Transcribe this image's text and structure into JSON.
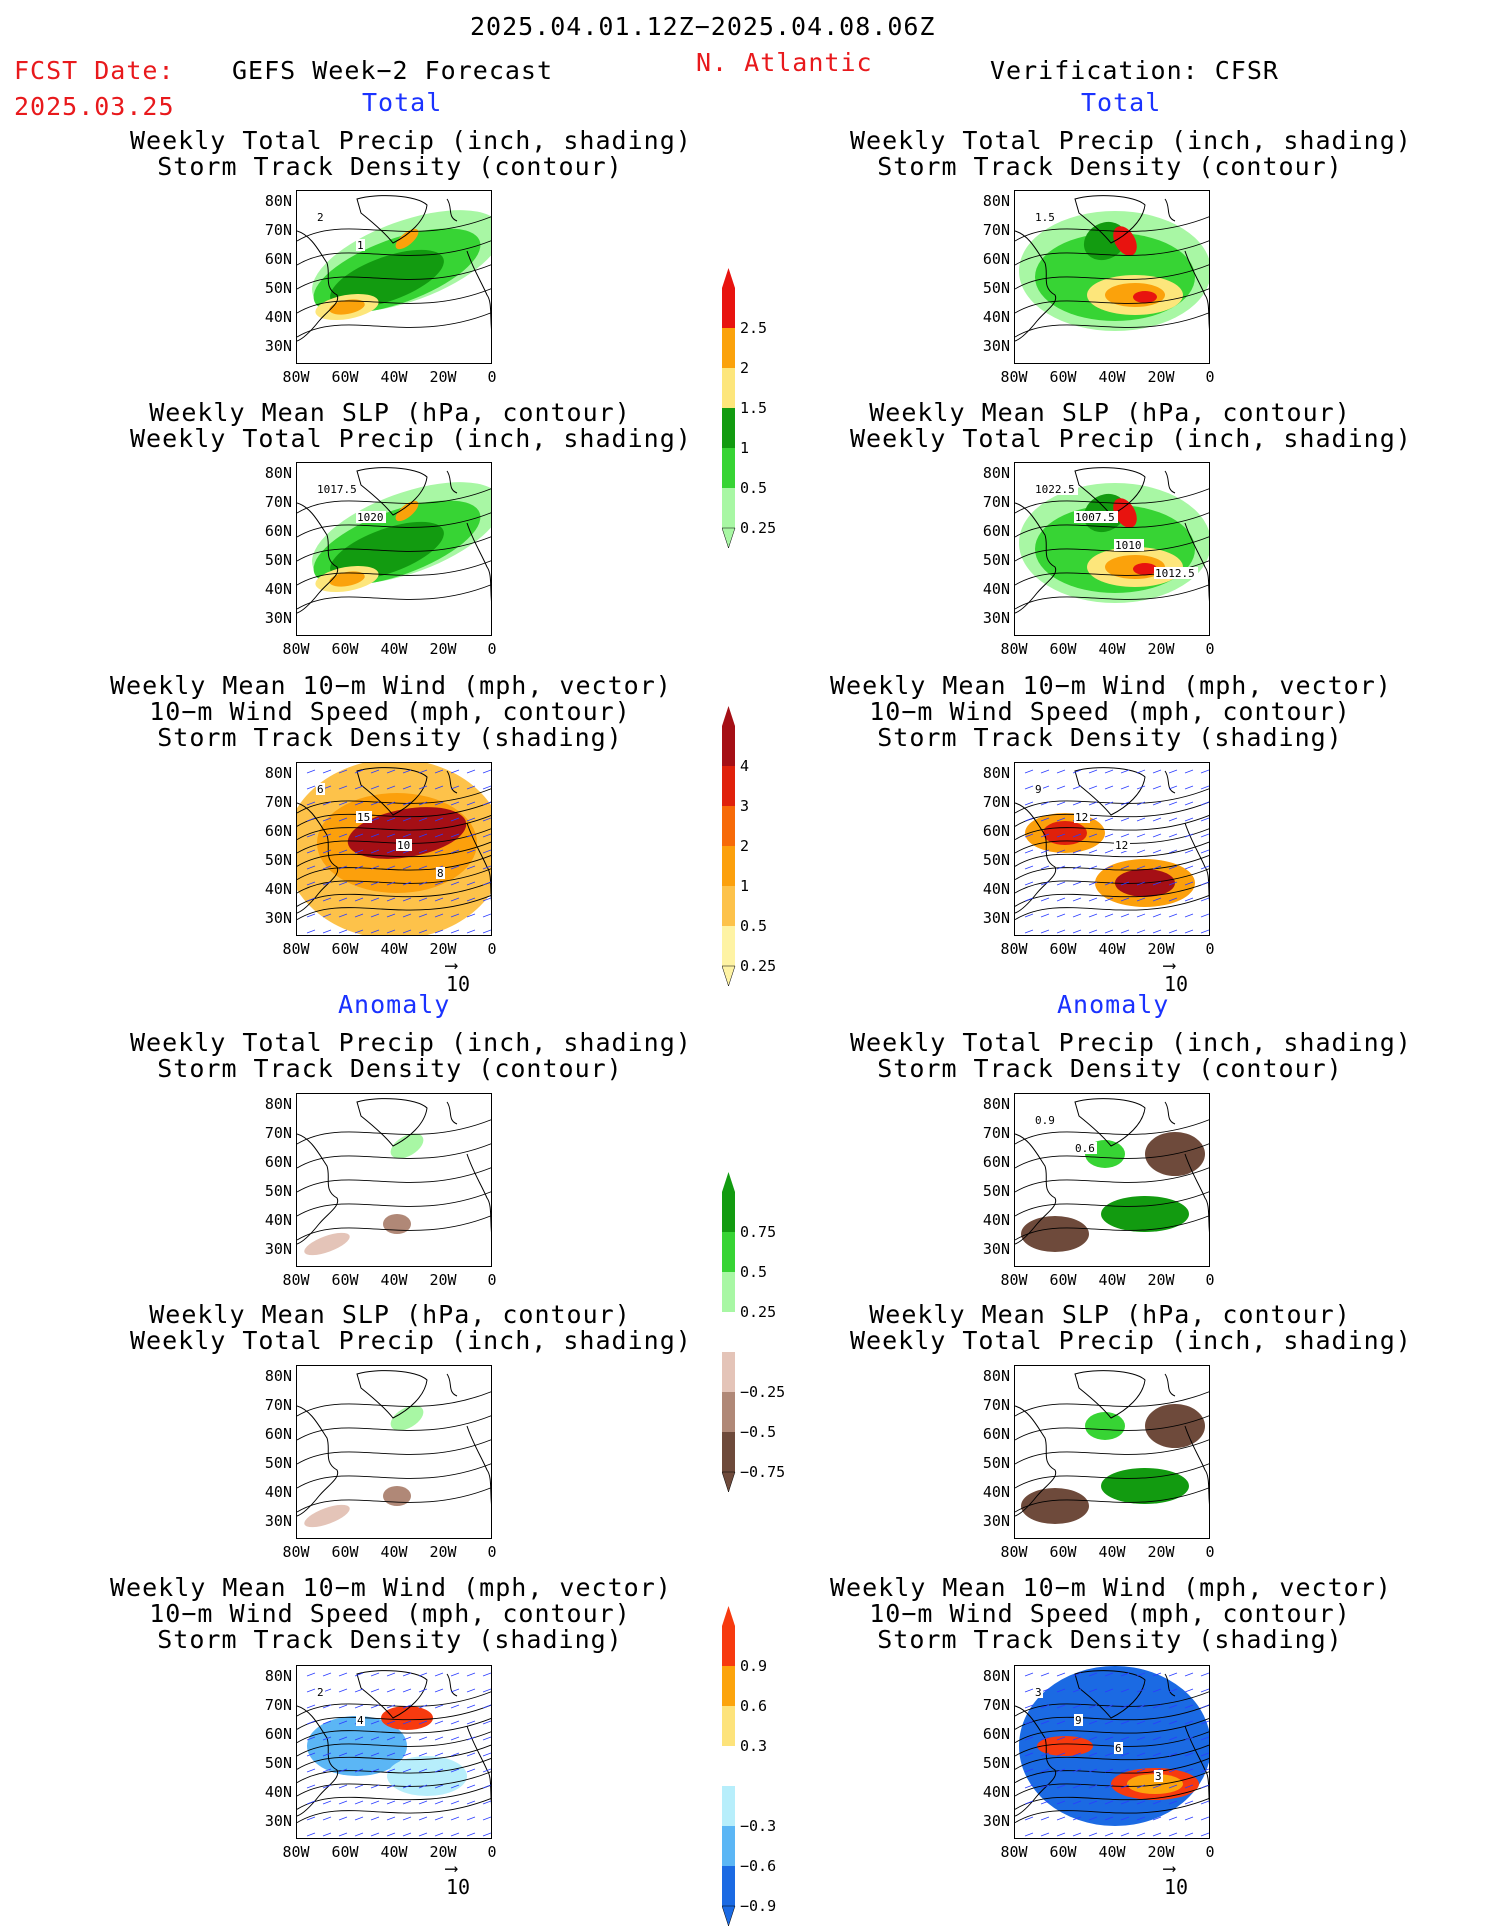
{
  "header": {
    "date_range": "2025.04.01.12Z−2025.04.08.06Z",
    "fcst_label": "FCST Date:",
    "fcst_date": "2025.03.25",
    "model_title": "GEFS Week−2 Forecast",
    "region": "N. Atlantic",
    "verification": "Verification: CFSR"
  },
  "sections": {
    "total": "Total",
    "anomaly": "Anomaly"
  },
  "titles": {
    "precip_track": "Weekly Total Precip (inch, shading)\nStorm Track Density (contour)",
    "slp_precip": "Weekly Mean SLP (hPa, contour)\nWeekly Total Precip (inch, shading)",
    "wind_track": "Weekly Mean 10−m Wind (mph, vector)\n10−m Wind Speed (mph, contour)\nStorm Track Density (shading)"
  },
  "axes": {
    "lat_labels": [
      "80N",
      "70N",
      "60N",
      "50N",
      "40N",
      "30N"
    ],
    "lon_labels": [
      "80W",
      "60W",
      "40W",
      "20W",
      "0"
    ]
  },
  "vector_ref": "10",
  "contour_labels": {
    "fc_precip_track": [
      "2",
      "1"
    ],
    "fc_slp_precip": [
      "1017.5",
      "1020"
    ],
    "fc_wind": [
      "6",
      "15",
      "10",
      "8"
    ],
    "ob_precip_track": [
      "1.5"
    ],
    "ob_slp_precip": [
      "1022.5",
      "1007.5",
      "1010",
      "1012.5"
    ],
    "ob_wind": [
      "9",
      "12",
      "12"
    ],
    "fc_anom_wind": [
      "2",
      "4"
    ],
    "ob_anom_precip": [
      "0.9",
      "0.6"
    ],
    "ob_anom_wind": [
      "3",
      "9",
      "6",
      "3"
    ]
  },
  "colorbars": {
    "precip_total": {
      "labels": [
        "2.5",
        "2",
        "1.5",
        "1",
        "0.5",
        "0.25"
      ],
      "colors": [
        "#e8130f",
        "#fba20b",
        "#fde67b",
        "#129b10",
        "#37d434",
        "#a8f7a4"
      ]
    },
    "track_total": {
      "labels": [
        "4",
        "3",
        "2",
        "1",
        "0.5",
        "0.25"
      ],
      "colors": [
        "#a50f15",
        "#e0210b",
        "#f76a08",
        "#fca00c",
        "#fdc24a",
        "#fef3a4"
      ]
    },
    "precip_anom": {
      "labels": [
        "0.75",
        "0.5",
        "0.25",
        "−0.25",
        "−0.5",
        "−0.75"
      ],
      "colors": [
        "#129b10",
        "#37d434",
        "#a8f7a4",
        "#ffffff",
        "#e4c4b8",
        "#b08877",
        "#6e4a3b"
      ]
    },
    "track_anom": {
      "labels": [
        "0.9",
        "0.6",
        "0.3",
        "−0.3",
        "−0.6",
        "−0.9"
      ],
      "colors": [
        "#f73a0f",
        "#fca40c",
        "#fde37b",
        "#ffffff",
        "#b7eefb",
        "#5bb6f5",
        "#1b6ae3"
      ]
    }
  }
}
